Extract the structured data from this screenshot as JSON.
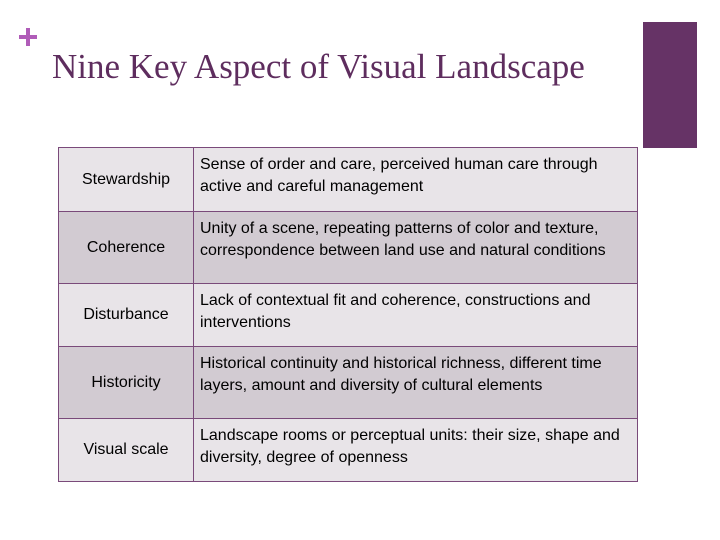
{
  "slide": {
    "title": "Nine Key Aspect of Visual Landscape",
    "icons": [
      "plus-icon"
    ],
    "colors": {
      "title": "#5e2d5e",
      "accent_bar": "#663366",
      "plus": "#b05cb8",
      "row_light": "#e8e4e8",
      "row_dark": "#d2cbd2"
    }
  },
  "table": {
    "rows": [
      {
        "aspect": "Stewardship",
        "description": "Sense of order and care, perceived human care through active and careful management"
      },
      {
        "aspect": "Coherence",
        "description": "Unity of a scene, repeating patterns of color and texture, correspondence between land use and natural conditions"
      },
      {
        "aspect": "Disturbance",
        "description": "Lack of contextual fit and coherence, constructions and interventions"
      },
      {
        "aspect": "Historicity",
        "description": "Historical continuity and historical richness, different time layers, amount and diversity of cultural elements"
      },
      {
        "aspect": "Visual scale",
        "description": "Landscape rooms or perceptual units: their size, shape and diversity, degree of openness"
      }
    ]
  }
}
